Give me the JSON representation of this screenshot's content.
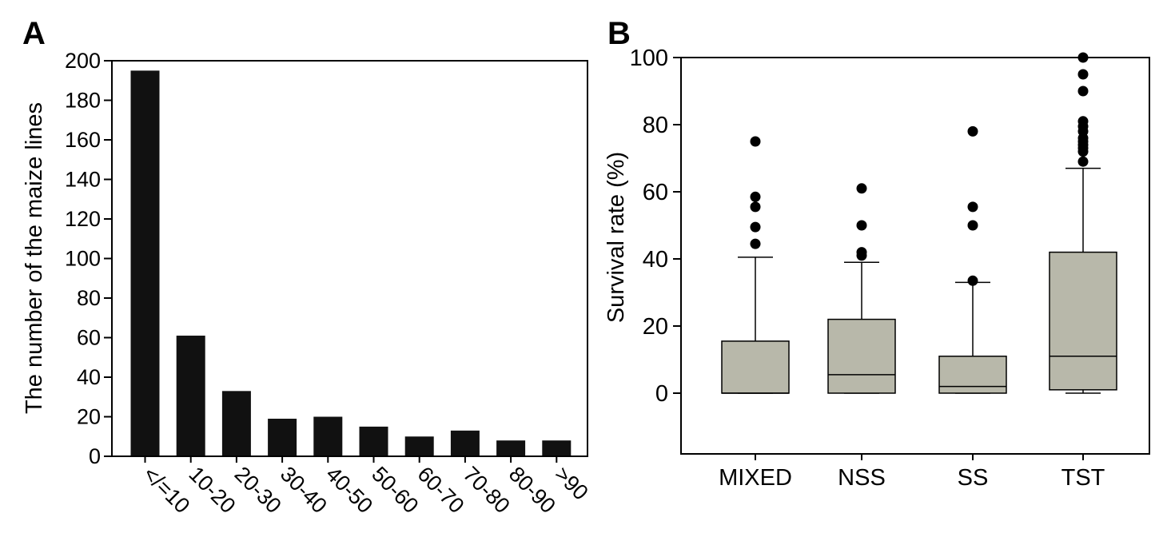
{
  "chart_data": [
    {
      "panel": "A",
      "type": "bar",
      "title": "",
      "xlabel": "",
      "ylabel": "The number of the maize lines",
      "categories": [
        "</=10",
        "10-20",
        "20-30",
        "30-40",
        "40-50",
        "50-60",
        "60-70",
        "70-80",
        "80-90",
        ">90"
      ],
      "values": [
        195,
        61,
        33,
        19,
        20,
        15,
        10,
        13,
        8,
        8
      ],
      "ylim": [
        0,
        200
      ],
      "yticks": [
        0,
        20,
        40,
        60,
        80,
        100,
        120,
        140,
        160,
        180,
        200
      ],
      "bar_color": "#111111",
      "grid": false
    },
    {
      "panel": "B",
      "type": "box",
      "title": "",
      "xlabel": "",
      "ylabel": "Survival rate (%)",
      "categories": [
        "MIXED",
        "NSS",
        "SS",
        "TST"
      ],
      "boxes": [
        {
          "name": "MIXED",
          "min": 0,
          "q1": 0,
          "median": 0,
          "q3": 15.5,
          "max": 40.5,
          "outliers": [
            44.5,
            49.5,
            55.5,
            58.5,
            75
          ]
        },
        {
          "name": "NSS",
          "min": 0,
          "q1": 0,
          "median": 5.5,
          "q3": 22,
          "max": 39,
          "outliers": [
            41,
            42,
            50,
            61
          ]
        },
        {
          "name": "SS",
          "min": 0,
          "q1": 0,
          "median": 2,
          "q3": 11,
          "max": 33,
          "outliers": [
            33.5,
            50,
            55.5,
            78
          ]
        },
        {
          "name": "TST",
          "min": 0,
          "q1": 1,
          "median": 11,
          "q3": 42,
          "max": 67,
          "outliers": [
            69,
            72,
            73,
            74,
            75,
            76,
            78,
            79.5,
            81,
            90,
            95,
            100
          ]
        }
      ],
      "ylim": [
        -18,
        100
      ],
      "yticks": [
        0,
        20,
        40,
        60,
        80,
        100
      ],
      "box_color": "#b8b8aa",
      "grid": false
    }
  ]
}
